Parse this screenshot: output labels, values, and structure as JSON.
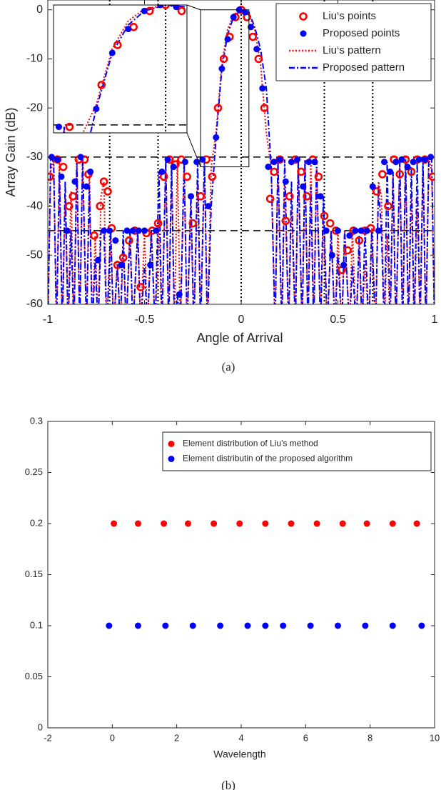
{
  "chart_data": [
    {
      "type": "line",
      "caption": "(a)",
      "xlabel": "Angle of Arrival",
      "ylabel": "Array Gain (dB)",
      "xlim": [
        -1,
        1
      ],
      "ylim": [
        -60,
        2
      ],
      "xticks": [
        -1,
        -0.5,
        0,
        0.5,
        1
      ],
      "yticks": [
        -60,
        -50,
        -40,
        -30,
        -20,
        -10,
        0
      ],
      "hlines": [
        -30,
        -45
      ],
      "vlines": [
        -0.68,
        -0.43,
        0,
        0.43,
        0.68
      ],
      "legend": "upper right",
      "inset": {
        "xlim": [
          -0.21,
          0.04
        ],
        "ylim": [
          -32,
          0
        ]
      },
      "series": [
        {
          "name": "Liu‘s points",
          "color": "#ff0000",
          "marker": "ring",
          "x": [
            -0.99,
            -0.95,
            -0.92,
            -0.89,
            -0.87,
            -0.84,
            -0.81,
            -0.79,
            -0.76,
            -0.73,
            -0.71,
            -0.69,
            -0.67,
            -0.64,
            -0.61,
            -0.58,
            -0.55,
            -0.52,
            -0.49,
            -0.46,
            -0.43,
            -0.4,
            -0.37,
            -0.34,
            -0.31,
            -0.28,
            -0.25,
            -0.21,
            -0.18,
            -0.15,
            -0.12,
            -0.09,
            -0.06,
            -0.03,
            0,
            0.03,
            0.06,
            0.09,
            0.12,
            0.15,
            0.17,
            0.2,
            0.23,
            0.25,
            0.28,
            0.31,
            0.34,
            0.37,
            0.4,
            0.43,
            0.46,
            0.49,
            0.52,
            0.55,
            0.58,
            0.61,
            0.64,
            0.67,
            0.7,
            0.73,
            0.76,
            0.79,
            0.82,
            0.85,
            0.88,
            0.91,
            0.95,
            0.99
          ],
          "values": [
            -34,
            -30.5,
            -32,
            -40,
            -38,
            -30.5,
            -30.5,
            -33.5,
            -46,
            -40,
            -35,
            -37,
            -44.5,
            -52,
            -50.5,
            -47,
            -45,
            -56.5,
            -45.5,
            -45,
            -43.5,
            -34,
            -30.5,
            -31.5,
            -30.5,
            -34,
            -43.5,
            -38,
            -30.5,
            -34,
            -20,
            -10,
            -5.5,
            -1.5,
            0,
            -1.5,
            -5.5,
            -10,
            -20,
            -38.5,
            -33,
            -30.5,
            -43,
            -38,
            -30.5,
            -33,
            -38,
            -30.5,
            -34,
            -42,
            -43.5,
            -45,
            -53,
            -49,
            -45,
            -47,
            -45,
            -44.5,
            -37,
            -33.5,
            -40,
            -30.5,
            -33.5,
            -30.5,
            -33,
            -30.5,
            -30.5,
            -34
          ]
        },
        {
          "name": "Proposed points",
          "color": "#0000ff",
          "marker": "dot",
          "x": [
            -0.98,
            -0.95,
            -0.93,
            -0.9,
            -0.86,
            -0.83,
            -0.8,
            -0.78,
            -0.74,
            -0.71,
            -0.68,
            -0.65,
            -0.62,
            -0.59,
            -0.56,
            -0.53,
            -0.5,
            -0.47,
            -0.44,
            -0.41,
            -0.38,
            -0.35,
            -0.32,
            -0.29,
            -0.26,
            -0.23,
            -0.2,
            -0.17,
            -0.13,
            -0.1,
            -0.07,
            -0.04,
            -0.01,
            0.02,
            0.05,
            0.08,
            0.11,
            0.14,
            0.17,
            0.2,
            0.23,
            0.26,
            0.29,
            0.32,
            0.35,
            0.38,
            0.41,
            0.44,
            0.47,
            0.5,
            0.53,
            0.56,
            0.59,
            0.62,
            0.65,
            0.68,
            0.71,
            0.74,
            0.77,
            0.8,
            0.83,
            0.86,
            0.89,
            0.92,
            0.95,
            0.98
          ],
          "values": [
            -30,
            -30.5,
            -34,
            -45,
            -35,
            -30,
            -36,
            -33,
            -51,
            -45,
            -45,
            -47,
            -52,
            -45,
            -45,
            -45,
            -45,
            -52,
            -45,
            -33,
            -30.5,
            -32,
            -58,
            -31,
            -38,
            -31,
            -30.5,
            -40,
            -26,
            -12,
            -6,
            -1.5,
            0,
            -0.5,
            -3.5,
            -8,
            -16,
            -32,
            -31,
            -30.5,
            -35,
            -31,
            -30.5,
            -36,
            -31,
            -31,
            -38,
            -45,
            -50,
            -45,
            -52,
            -46,
            -45,
            -45,
            -45,
            -36,
            -45,
            -31,
            -33,
            -31,
            -30.5,
            -32,
            -31,
            -30.5,
            -30.5,
            -30
          ]
        },
        {
          "name": "Liu‘s pattern",
          "color": "#ff0000",
          "line_style": "dotted",
          "x": [
            -1,
            -0.985,
            -0.97,
            -0.955,
            -0.94,
            -0.925,
            -0.91,
            -0.895,
            -0.88,
            -0.865,
            -0.85,
            -0.835,
            -0.82,
            -0.8,
            -0.785,
            -0.77,
            -0.755,
            -0.74,
            -0.725,
            -0.71,
            -0.695,
            -0.675,
            -0.66,
            -0.64,
            -0.625,
            -0.61,
            -0.595,
            -0.575,
            -0.56,
            -0.535,
            -0.52,
            -0.5,
            -0.485,
            -0.465,
            -0.445,
            -0.425,
            -0.41,
            -0.39,
            -0.375,
            -0.36,
            -0.345,
            -0.33,
            -0.315,
            -0.295,
            -0.28,
            -0.26,
            -0.245,
            -0.225,
            -0.21,
            -0.19,
            -0.175,
            -0.155,
            -0.13,
            -0.1,
            -0.07,
            -0.04,
            0,
            0.04,
            0.07,
            0.1,
            0.13,
            0.155,
            0.175,
            0.19,
            0.21,
            0.225,
            0.245,
            0.26,
            0.28,
            0.295,
            0.315,
            0.33,
            0.345,
            0.36,
            0.375,
            0.39,
            0.41,
            0.425,
            0.445,
            0.465,
            0.485,
            0.5,
            0.52,
            0.535,
            0.56,
            0.575,
            0.595,
            0.61,
            0.625,
            0.64,
            0.66,
            0.675,
            0.695,
            0.71,
            0.725,
            0.74,
            0.755,
            0.77,
            0.785,
            0.8,
            0.82,
            0.835,
            0.85,
            0.865,
            0.88,
            0.895,
            0.91,
            0.925,
            0.94,
            0.955,
            0.97,
            0.985,
            1
          ],
          "values": [
            -65,
            -33,
            -30,
            -65,
            -31,
            -65,
            -38,
            -65,
            -37,
            -65,
            -30,
            -65,
            -30.5,
            -65,
            -33,
            -65,
            -46,
            -65,
            -38,
            -35,
            -65,
            -44.5,
            -65,
            -51,
            -65,
            -48,
            -65,
            -45,
            -65,
            -45,
            -65,
            -45,
            -65,
            -45,
            -65,
            -43,
            -65,
            -32,
            -65,
            -30.5,
            -65,
            -30.5,
            -65,
            -30.5,
            -65,
            -40,
            -65,
            -35,
            -65,
            -30.5,
            -65,
            -32,
            -25,
            -11,
            -4,
            -1,
            0,
            -1,
            -4,
            -11,
            -25,
            -32,
            -65,
            -30.5,
            -65,
            -35,
            -65,
            -40,
            -65,
            -30.5,
            -65,
            -30.5,
            -65,
            -30.5,
            -65,
            -32,
            -65,
            -43,
            -65,
            -45,
            -65,
            -45,
            -65,
            -45,
            -65,
            -45,
            -65,
            -48,
            -65,
            -51,
            -65,
            -44.5,
            -65,
            -35,
            -38,
            -65,
            -46,
            -65,
            -33,
            -65,
            -30.5,
            -65,
            -30,
            -65,
            -37,
            -65,
            -38,
            -65,
            -31,
            -65,
            -30,
            -33,
            -65
          ]
        },
        {
          "name": "Proposed pattern",
          "color": "#0000ff",
          "line_style": "dashdot",
          "x": [
            -1,
            -0.985,
            -0.97,
            -0.955,
            -0.94,
            -0.925,
            -0.91,
            -0.895,
            -0.88,
            -0.865,
            -0.85,
            -0.835,
            -0.82,
            -0.8,
            -0.785,
            -0.77,
            -0.755,
            -0.74,
            -0.725,
            -0.71,
            -0.695,
            -0.675,
            -0.66,
            -0.64,
            -0.625,
            -0.61,
            -0.595,
            -0.575,
            -0.56,
            -0.535,
            -0.52,
            -0.5,
            -0.485,
            -0.465,
            -0.445,
            -0.425,
            -0.41,
            -0.39,
            -0.375,
            -0.36,
            -0.345,
            -0.33,
            -0.315,
            -0.295,
            -0.28,
            -0.26,
            -0.245,
            -0.225,
            -0.21,
            -0.19,
            -0.175,
            -0.155,
            -0.13,
            -0.1,
            -0.07,
            -0.04,
            0,
            0.04,
            0.07,
            0.1,
            0.13,
            0.155,
            0.175,
            0.19,
            0.21,
            0.225,
            0.245,
            0.26,
            0.28,
            0.295,
            0.315,
            0.33,
            0.345,
            0.36,
            0.375,
            0.39,
            0.41,
            0.425,
            0.445,
            0.465,
            0.485,
            0.5,
            0.52,
            0.535,
            0.56,
            0.575,
            0.595,
            0.61,
            0.625,
            0.64,
            0.66,
            0.675,
            0.695,
            0.71,
            0.725,
            0.74,
            0.755,
            0.77,
            0.785,
            0.8,
            0.82,
            0.835,
            0.85,
            0.865,
            0.88,
            0.895,
            0.91,
            0.925,
            0.94,
            0.955,
            0.97,
            0.985,
            1
          ],
          "values": [
            -65,
            -30,
            -31,
            -65,
            -33,
            -65,
            -35,
            -65,
            -45,
            -65,
            -31,
            -65,
            -30,
            -65,
            -36,
            -65,
            -51,
            -65,
            -45,
            -45,
            -65,
            -45,
            -65,
            -52,
            -65,
            -45,
            -65,
            -45,
            -65,
            -45,
            -65,
            -52,
            -65,
            -45,
            -65,
            -33,
            -65,
            -30.5,
            -65,
            -32,
            -65,
            -58,
            -65,
            -31,
            -65,
            -38,
            -65,
            -31,
            -65,
            -30.5,
            -65,
            -40,
            -26,
            -12,
            -5,
            -1.5,
            0,
            -0.5,
            -3.5,
            -8,
            -16,
            -32,
            -65,
            -31,
            -65,
            -30.5,
            -65,
            -35,
            -65,
            -31,
            -65,
            -30.5,
            -65,
            -36,
            -65,
            -31,
            -65,
            -38,
            -65,
            -45,
            -65,
            -50,
            -65,
            -45,
            -65,
            -52,
            -65,
            -46,
            -65,
            -45,
            -65,
            -45,
            -65,
            -36,
            -45,
            -65,
            -31,
            -65,
            -33,
            -65,
            -31,
            -65,
            -30.5,
            -65,
            -32,
            -65,
            -31,
            -65,
            -30.5,
            -65,
            -30.5,
            -30,
            -65
          ]
        }
      ]
    },
    {
      "type": "scatter",
      "caption": "(b)",
      "xlabel": "Wavelength",
      "xlim": [
        -2,
        10
      ],
      "ylim": [
        0,
        0.3
      ],
      "xticks": [
        -2,
        0,
        2,
        4,
        6,
        8,
        10
      ],
      "yticks": [
        0,
        0.05,
        0.1,
        0.15,
        0.2,
        0.25,
        0.3
      ],
      "legend": "upper right",
      "series": [
        {
          "name": "Element distribution of Liu's method",
          "color": "#ff0000",
          "marker": "dot",
          "x": [
            0.05,
            0.8,
            1.6,
            2.35,
            3.15,
            3.95,
            4.75,
            5.55,
            6.35,
            7.15,
            7.9,
            8.7,
            9.45
          ],
          "values": [
            0.2,
            0.2,
            0.2,
            0.2,
            0.2,
            0.2,
            0.2,
            0.2,
            0.2,
            0.2,
            0.2,
            0.2,
            0.2
          ]
        },
        {
          "name": "Element distributin of the proposed algorithm",
          "color": "#0000ff",
          "marker": "dot",
          "x": [
            -0.1,
            0.8,
            1.65,
            2.5,
            3.35,
            4.2,
            4.75,
            5.3,
            6.15,
            7.0,
            7.85,
            8.7,
            9.6
          ],
          "values": [
            0.1,
            0.1,
            0.1,
            0.1,
            0.1,
            0.1,
            0.1,
            0.1,
            0.1,
            0.1,
            0.1,
            0.1,
            0.1
          ]
        }
      ]
    }
  ]
}
